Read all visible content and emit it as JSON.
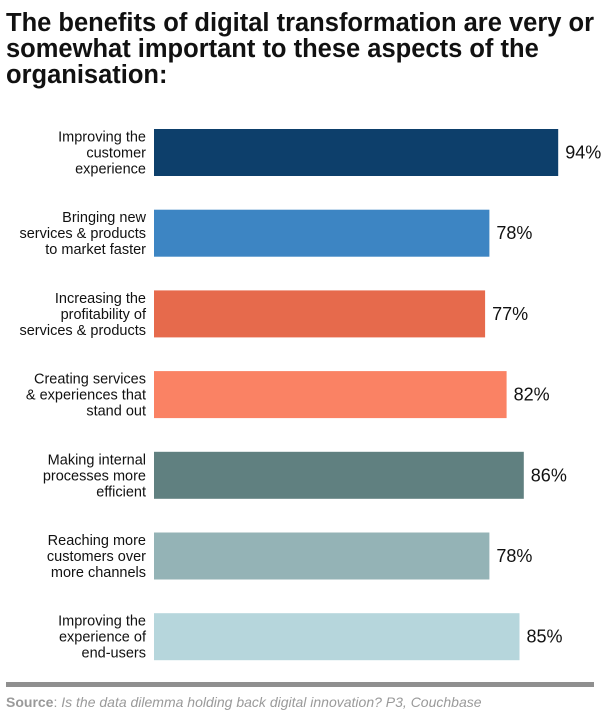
{
  "chart_data": {
    "type": "bar",
    "orientation": "horizontal",
    "title": "The benefits of digital transformation are very or somewhat important to these aspects of the organisation:",
    "categories": [
      [
        "Improving the",
        "customer",
        "experience"
      ],
      [
        "Bringing new",
        "services & products",
        "to market faster"
      ],
      [
        "Increasing the",
        "profitability of",
        "services & products"
      ],
      [
        "Creating services",
        "& experiences that",
        "stand out"
      ],
      [
        "Making internal",
        "processes more",
        "efficient"
      ],
      [
        "Reaching more",
        "customers over",
        "more channels"
      ],
      [
        "Improving the",
        "experience of",
        "end-users"
      ]
    ],
    "values": [
      94,
      78,
      77,
      82,
      86,
      78,
      85
    ],
    "value_labels": [
      "94%",
      "78%",
      "77%",
      "82%",
      "86%",
      "78%",
      "85%"
    ],
    "colors": [
      "#0d3f6b",
      "#3d85c3",
      "#e66a4c",
      "#fa8264",
      "#608080",
      "#94b3b6",
      "#b6d6dc"
    ],
    "xlim": [
      0,
      100
    ],
    "grid": false,
    "legend": "none"
  },
  "source": {
    "label": "Source",
    "separator": ":",
    "text": " Is the data dilemma holding back digital innovation? P3, Couchbase"
  }
}
